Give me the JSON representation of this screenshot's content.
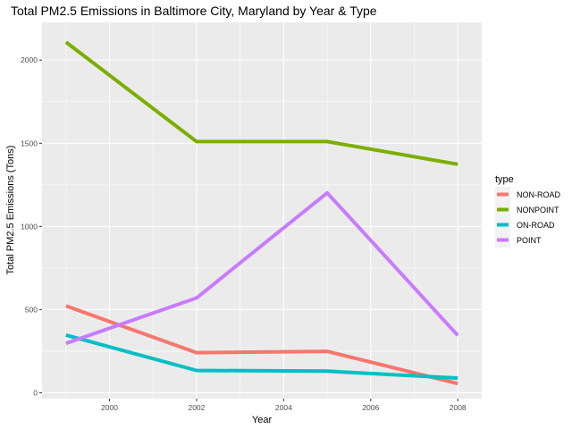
{
  "chart_data": {
    "type": "line",
    "title": "Total PM2.5 Emissions in Baltimore City, Maryland by Year & Type",
    "xlabel": "Year",
    "ylabel": "Total PM2.5 Emissions (Tons)",
    "x": [
      1999,
      2002,
      2005,
      2008
    ],
    "xlim": [
      1998.45,
      2008.55
    ],
    "ylim": [
      -35,
      2227
    ],
    "xticks": [
      2000,
      2002,
      2004,
      2006,
      2008
    ],
    "yticks": [
      0,
      500,
      1000,
      1500,
      2000
    ],
    "grid": true,
    "legend": {
      "title": "type",
      "placement": "right"
    },
    "series": [
      {
        "name": "NON-ROAD",
        "color": "#F8766D",
        "values": [
          522,
          241,
          249,
          55
        ]
      },
      {
        "name": "NONPOINT",
        "color": "#7CAE00",
        "values": [
          2108,
          1510,
          1510,
          1374
        ]
      },
      {
        "name": "ON-ROAD",
        "color": "#00BFC4",
        "values": [
          347,
          134,
          130,
          88
        ]
      },
      {
        "name": "POINT",
        "color": "#C77CFF",
        "values": [
          297,
          570,
          1202,
          345
        ]
      }
    ]
  }
}
